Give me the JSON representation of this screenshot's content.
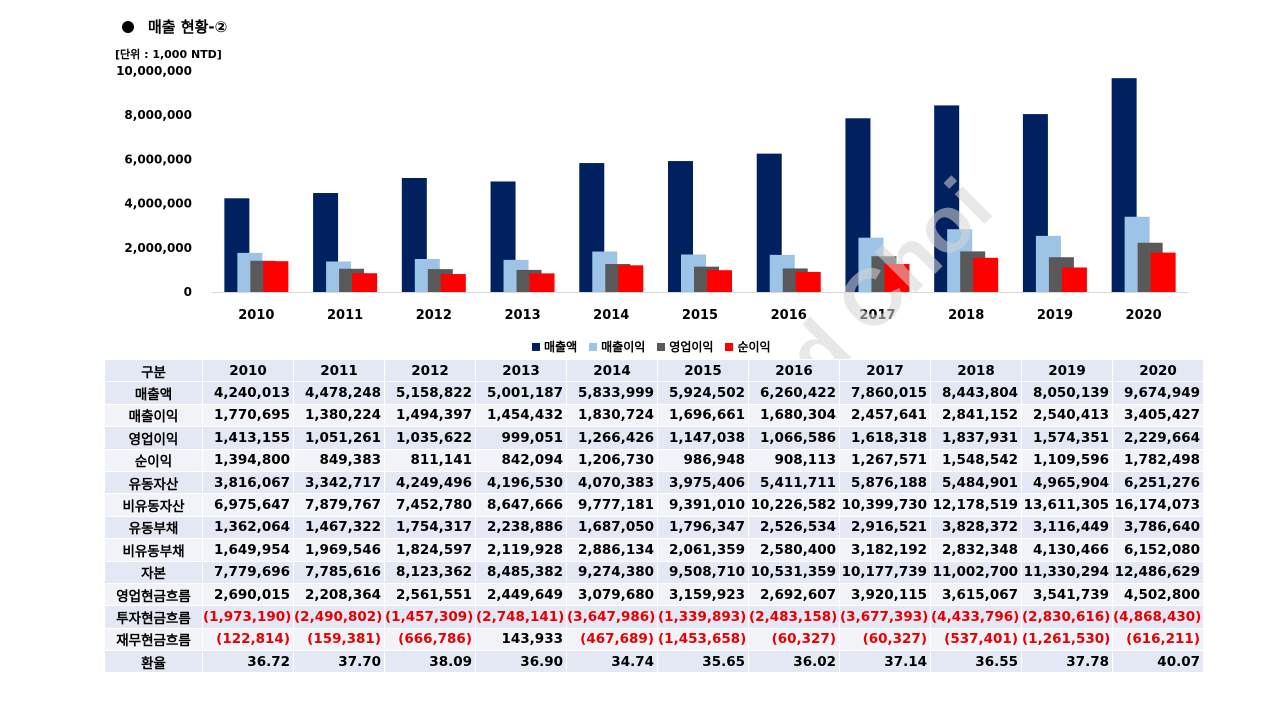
{
  "header": {
    "title": "매출 현황-②",
    "unit": "[단위 : 1,000 NTD]"
  },
  "watermark": "Edward Choi",
  "colors": {
    "매출액": "#002060",
    "매출이익": "#9dc3e6",
    "영업이익": "#595959",
    "순이익": "#ff0000",
    "negative": "#e60000",
    "table_band": "#e4e8f4"
  },
  "chart_data": {
    "type": "bar",
    "title": "",
    "ylim": [
      0,
      10000000
    ],
    "yticks": [
      "0",
      "2,000,000",
      "4,000,000",
      "6,000,000",
      "8,000,000",
      "10,000,000"
    ],
    "categories": [
      "2010",
      "2011",
      "2012",
      "2013",
      "2014",
      "2015",
      "2016",
      "2017",
      "2018",
      "2019",
      "2020"
    ],
    "legend_position": "bottom",
    "series": [
      {
        "name": "매출액",
        "values": [
          4240013,
          4478248,
          5158822,
          5001187,
          5833999,
          5924502,
          6260422,
          7860015,
          8443804,
          8050139,
          9674949
        ]
      },
      {
        "name": "매출이익",
        "values": [
          1770695,
          1380224,
          1494397,
          1454432,
          1830724,
          1696661,
          1680304,
          2457641,
          2841152,
          2540413,
          3405427
        ]
      },
      {
        "name": "영업이익",
        "values": [
          1413155,
          1051261,
          1035622,
          999051,
          1266426,
          1147038,
          1066586,
          1618318,
          1837931,
          1574351,
          2229664
        ]
      },
      {
        "name": "순이익",
        "values": [
          1394800,
          849383,
          811141,
          842094,
          1206730,
          986948,
          908113,
          1267571,
          1548542,
          1109596,
          1782498
        ]
      }
    ]
  },
  "table": {
    "header": [
      "구분",
      "2010",
      "2011",
      "2012",
      "2013",
      "2014",
      "2015",
      "2016",
      "2017",
      "2018",
      "2019",
      "2020"
    ],
    "rows": [
      [
        "매출액",
        "4,240,013",
        "4,478,248",
        "5,158,822",
        "5,001,187",
        "5,833,999",
        "5,924,502",
        "6,260,422",
        "7,860,015",
        "8,443,804",
        "8,050,139",
        "9,674,949"
      ],
      [
        "매출이익",
        "1,770,695",
        "1,380,224",
        "1,494,397",
        "1,454,432",
        "1,830,724",
        "1,696,661",
        "1,680,304",
        "2,457,641",
        "2,841,152",
        "2,540,413",
        "3,405,427"
      ],
      [
        "영업이익",
        "1,413,155",
        "1,051,261",
        "1,035,622",
        "999,051",
        "1,266,426",
        "1,147,038",
        "1,066,586",
        "1,618,318",
        "1,837,931",
        "1,574,351",
        "2,229,664"
      ],
      [
        "순이익",
        "1,394,800",
        "849,383",
        "811,141",
        "842,094",
        "1,206,730",
        "986,948",
        "908,113",
        "1,267,571",
        "1,548,542",
        "1,109,596",
        "1,782,498"
      ],
      [
        "유동자산",
        "3,816,067",
        "3,342,717",
        "4,249,496",
        "4,196,530",
        "4,070,383",
        "3,975,406",
        "5,411,711",
        "5,876,188",
        "5,484,901",
        "4,965,904",
        "6,251,276"
      ],
      [
        "비유동자산",
        "6,975,647",
        "7,879,767",
        "7,452,780",
        "8,647,666",
        "9,777,181",
        "9,391,010",
        "10,226,582",
        "10,399,730",
        "12,178,519",
        "13,611,305",
        "16,174,073"
      ],
      [
        "유동부채",
        "1,362,064",
        "1,467,322",
        "1,754,317",
        "2,238,886",
        "1,687,050",
        "1,796,347",
        "2,526,534",
        "2,916,521",
        "3,828,372",
        "3,116,449",
        "3,786,640"
      ],
      [
        "비유동부채",
        "1,649,954",
        "1,969,546",
        "1,824,597",
        "2,119,928",
        "2,886,134",
        "2,061,359",
        "2,580,400",
        "3,182,192",
        "2,832,348",
        "4,130,466",
        "6,152,080"
      ],
      [
        "자본",
        "7,779,696",
        "7,785,616",
        "8,123,362",
        "8,485,382",
        "9,274,380",
        "9,508,710",
        "10,531,359",
        "10,177,739",
        "11,002,700",
        "11,330,294",
        "12,486,629"
      ],
      [
        "영업현금흐름",
        "2,690,015",
        "2,208,364",
        "2,561,551",
        "2,449,649",
        "3,079,680",
        "3,159,923",
        "2,692,607",
        "3,920,115",
        "3,615,067",
        "3,541,739",
        "4,502,800"
      ],
      [
        "투자현금흐름",
        "(1,973,190)",
        "(2,490,802)",
        "(1,457,309)",
        "(2,748,141)",
        "(3,647,986)",
        "(1,339,893)",
        "(2,483,158)",
        "(3,677,393)",
        "(4,433,796)",
        "(2,830,616)",
        "(4,868,430)"
      ],
      [
        "재무현금흐름",
        "(122,814)",
        "(159,381)",
        "(666,786)",
        "143,933",
        "(467,689)",
        "(1,453,658)",
        "(60,327)",
        "(60,327)",
        "(537,401)",
        "(1,261,530)",
        "(616,211)"
      ],
      [
        "환율",
        "36.72",
        "37.70",
        "38.09",
        "36.90",
        "34.74",
        "35.65",
        "36.02",
        "37.14",
        "36.55",
        "37.78",
        "40.07"
      ]
    ]
  }
}
